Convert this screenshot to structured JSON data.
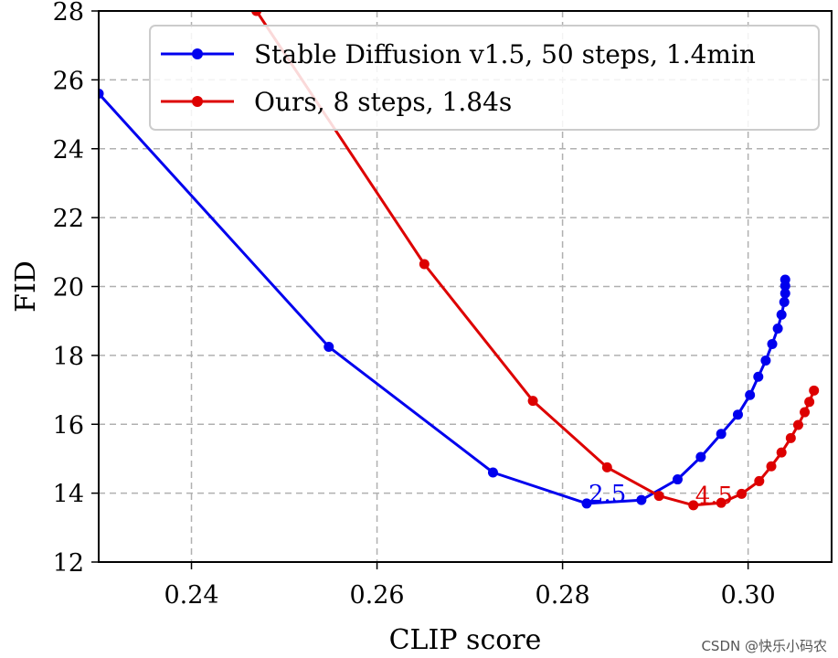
{
  "chart_data": {
    "type": "line",
    "xlabel": "CLIP score",
    "ylabel": "FID",
    "xlim": [
      0.23,
      0.309
    ],
    "ylim": [
      12,
      28
    ],
    "xticks": [
      0.24,
      0.26,
      0.28,
      0.3
    ],
    "xtick_labels": [
      "0.24",
      "0.26",
      "0.28",
      "0.30"
    ],
    "yticks": [
      12,
      14,
      16,
      18,
      20,
      22,
      24,
      26,
      28
    ],
    "ytick_labels": [
      "12",
      "14",
      "16",
      "18",
      "20",
      "22",
      "24",
      "26",
      "28"
    ],
    "grid": true,
    "legend_position": "top-right",
    "series": [
      {
        "name": "Stable Diffusion v1.5, 50 steps, 1.4min",
        "color": "#0000ee",
        "x": [
          0.23,
          0.2548,
          0.2725,
          0.2826,
          0.2885,
          0.2924,
          0.2949,
          0.2971,
          0.2989,
          0.3002,
          0.3011,
          0.3019,
          0.3026,
          0.3032,
          0.3036,
          0.3039,
          0.304,
          0.304,
          0.304
        ],
        "y": [
          25.6,
          18.25,
          14.6,
          13.7,
          13.8,
          14.4,
          15.05,
          15.72,
          16.28,
          16.85,
          17.38,
          17.85,
          18.33,
          18.78,
          19.18,
          19.55,
          19.8,
          20.02,
          20.2
        ]
      },
      {
        "name": "Ours, 8 steps, 1.84s",
        "color": "#dd0000",
        "x": [
          0.247,
          0.2651,
          0.2768,
          0.2848,
          0.2904,
          0.2941,
          0.2971,
          0.2993,
          0.3012,
          0.3025,
          0.3036,
          0.3046,
          0.3054,
          0.3061,
          0.3066,
          0.3071
        ],
        "y": [
          28.0,
          20.65,
          16.68,
          14.75,
          13.92,
          13.65,
          13.72,
          13.98,
          14.35,
          14.78,
          15.18,
          15.6,
          15.98,
          16.35,
          16.65,
          16.98
        ]
      }
    ],
    "annotations": [
      {
        "text": "2.5",
        "x": 0.2826,
        "y": 13.7,
        "color": "#0000ee"
      },
      {
        "text": "4.5",
        "x": 0.2941,
        "y": 13.65,
        "color": "#dd0000"
      }
    ]
  },
  "watermark": "CSDN @快乐小码农"
}
